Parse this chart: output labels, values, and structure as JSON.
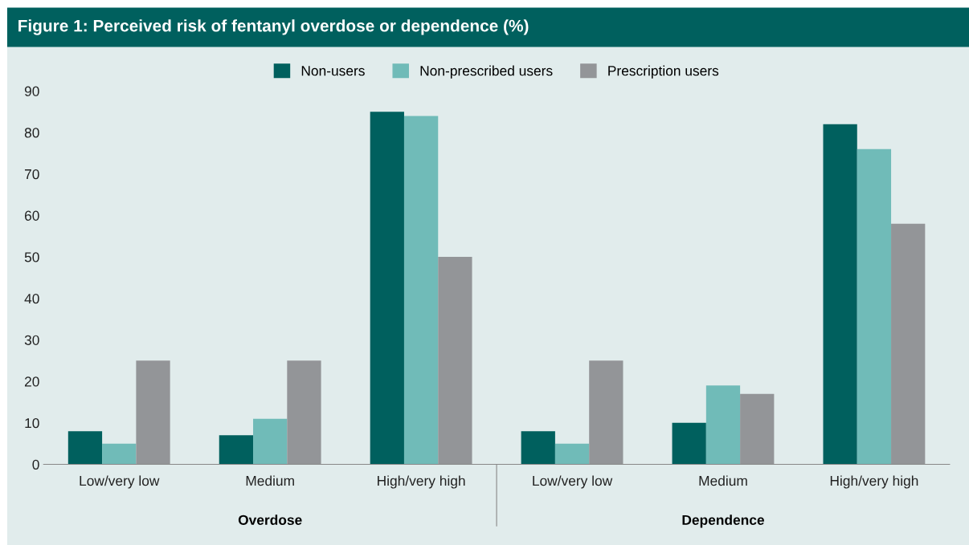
{
  "chart_data": {
    "type": "bar",
    "title": "Figure 1: Perceived risk of fentanyl overdose or dependence (%)",
    "categories": [
      "Low/very low",
      "Medium",
      "High/very high",
      "Low/very low",
      "Medium",
      "High/very high"
    ],
    "series": [
      {
        "name": "Non-users",
        "color": "#00605e",
        "values": [
          8,
          7,
          85,
          8,
          10,
          82
        ]
      },
      {
        "name": "Non-prescribed users",
        "color": "#70bbb8",
        "values": [
          5,
          11,
          84,
          5,
          19,
          76
        ]
      },
      {
        "name": "Prescription users",
        "color": "#939598",
        "values": [
          25,
          25,
          50,
          25,
          17,
          58
        ]
      }
    ],
    "annotations": [
      "Overdose",
      "Dependence"
    ],
    "ylim": [
      0,
      90
    ],
    "yticks": [
      0,
      10,
      20,
      30,
      40,
      50,
      60,
      70,
      80,
      90
    ],
    "grid": false,
    "legend": "top"
  }
}
